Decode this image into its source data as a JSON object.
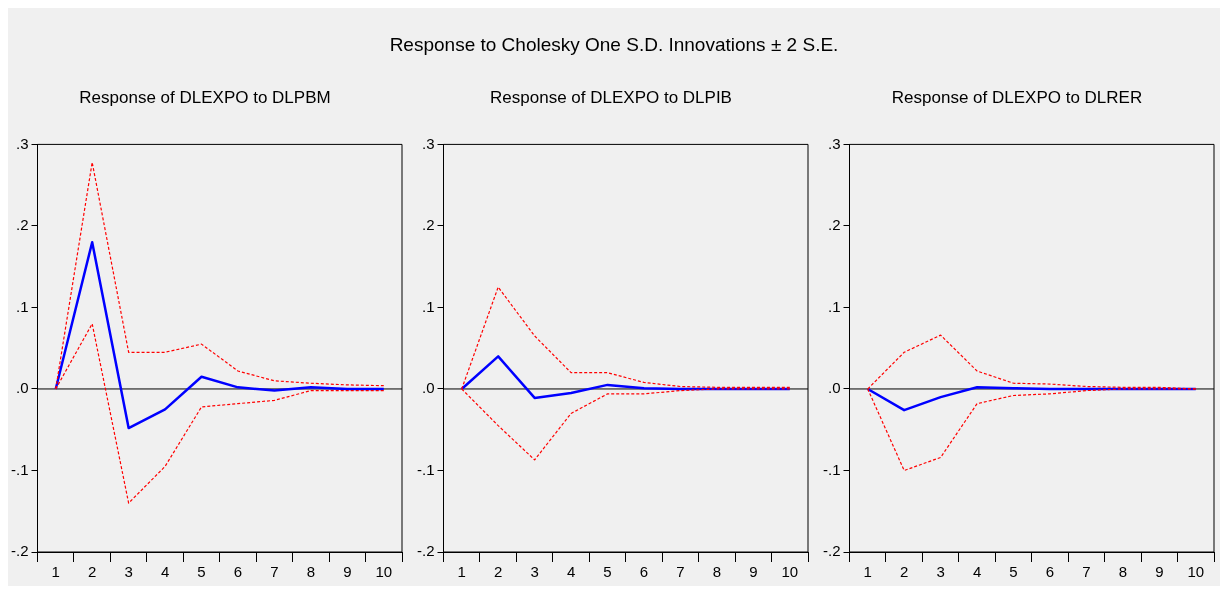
{
  "chart_data": [
    {
      "type": "line",
      "title": "Response of DLEXPO to DLPBM",
      "annotations": [
        "Response to Cholesky One S.D. Innovations ± 2 S.E."
      ],
      "categories": [
        "1",
        "2",
        "3",
        "4",
        "5",
        "6",
        "7",
        "8",
        "9",
        "10"
      ],
      "series": [
        {
          "color": "#0000ff",
          "line_style": "solid",
          "values": [
            0,
            0.18,
            -0.048,
            -0.025,
            0.015,
            0.002,
            -0.002,
            0.002,
            0,
            0
          ]
        },
        {
          "color": "#ff0000",
          "line_style": "dashed",
          "values": [
            0,
            0.278,
            0.045,
            0.045,
            0.055,
            0.022,
            0.01,
            0.007,
            0.005,
            0.004
          ]
        },
        {
          "color": "#ff0000",
          "line_style": "dashed",
          "values": [
            0,
            0.08,
            -0.14,
            -0.095,
            -0.022,
            -0.018,
            -0.014,
            -0.002,
            -0.002,
            -0.002
          ]
        }
      ],
      "ylim": [
        -0.2,
        0.3
      ],
      "yticks": [
        {
          "value": 0.3,
          "label": ".3"
        },
        {
          "value": 0.2,
          "label": ".2"
        },
        {
          "value": 0.1,
          "label": ".1"
        },
        {
          "value": 0,
          "label": ".0"
        },
        {
          "value": -0.1,
          "label": "-.1"
        },
        {
          "value": -0.2,
          "label": "-.2"
        }
      ],
      "ref_lines": [
        {
          "axis": "y",
          "value": 0,
          "color": "#000000"
        }
      ],
      "grid": false,
      "legend": false,
      "marker": "none"
    },
    {
      "type": "line",
      "title": "Response of DLEXPO to DLPIB",
      "categories": [
        "1",
        "2",
        "3",
        "4",
        "5",
        "6",
        "7",
        "8",
        "9",
        "10"
      ],
      "series": [
        {
          "color": "#0000ff",
          "line_style": "solid",
          "values": [
            0,
            0.04,
            -0.011,
            -0.005,
            0.005,
            0.001,
            0,
            0,
            0,
            0
          ]
        },
        {
          "color": "#ff0000",
          "line_style": "dashed",
          "values": [
            0,
            0.125,
            0.065,
            0.02,
            0.02,
            0.008,
            0.003,
            0.002,
            0.002,
            0.002
          ]
        },
        {
          "color": "#ff0000",
          "line_style": "dashed",
          "values": [
            0,
            -0.045,
            -0.087,
            -0.03,
            -0.006,
            -0.006,
            -0.002,
            0,
            0,
            0
          ]
        }
      ],
      "ylim": [
        -0.2,
        0.3
      ],
      "yticks": [
        {
          "value": 0.3,
          "label": ".3"
        },
        {
          "value": 0.2,
          "label": ".2"
        },
        {
          "value": 0.1,
          "label": ".1"
        },
        {
          "value": 0,
          "label": ".0"
        },
        {
          "value": -0.1,
          "label": "-.1"
        },
        {
          "value": -0.2,
          "label": "-.2"
        }
      ],
      "ref_lines": [
        {
          "axis": "y",
          "value": 0,
          "color": "#000000"
        }
      ],
      "grid": false,
      "legend": false,
      "marker": "none"
    },
    {
      "type": "line",
      "title": "Response of DLEXPO to DLRER",
      "categories": [
        "1",
        "2",
        "3",
        "4",
        "5",
        "6",
        "7",
        "8",
        "9",
        "10"
      ],
      "series": [
        {
          "color": "#0000ff",
          "line_style": "solid",
          "values": [
            0,
            -0.026,
            -0.01,
            0.002,
            0.001,
            0,
            0,
            0,
            0,
            0
          ]
        },
        {
          "color": "#ff0000",
          "line_style": "dashed",
          "values": [
            0,
            0.045,
            0.066,
            0.022,
            0.007,
            0.006,
            0.003,
            0.002,
            0.002,
            0
          ]
        },
        {
          "color": "#ff0000",
          "line_style": "dashed",
          "values": [
            0,
            -0.1,
            -0.084,
            -0.018,
            -0.008,
            -0.006,
            -0.002,
            0,
            0,
            0
          ]
        }
      ],
      "ylim": [
        -0.2,
        0.3
      ],
      "yticks": [
        {
          "value": 0.3,
          "label": ".3"
        },
        {
          "value": 0.2,
          "label": ".2"
        },
        {
          "value": 0.1,
          "label": ".1"
        },
        {
          "value": 0,
          "label": ".0"
        },
        {
          "value": -0.1,
          "label": "-.1"
        },
        {
          "value": -0.2,
          "label": "-.2"
        }
      ],
      "ref_lines": [
        {
          "axis": "y",
          "value": 0,
          "color": "#000000"
        }
      ],
      "grid": false,
      "legend": false,
      "marker": "none"
    }
  ]
}
